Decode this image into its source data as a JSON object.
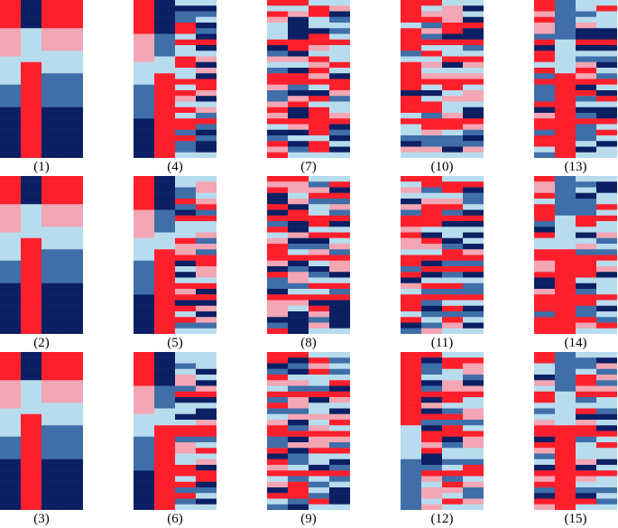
{
  "figure": {
    "panels": [
      {
        "label": "(1)",
        "cols": [
          "smooth-gradient",
          "smooth-gradient",
          "smooth-gradient",
          "smooth-gradient"
        ]
      },
      {
        "label": "(2)",
        "cols": [
          "smooth-gradient",
          "smooth-gradient",
          "smooth-gradient",
          "smooth-gradient"
        ]
      },
      {
        "label": "(3)",
        "cols": [
          "smooth-gradient",
          "smooth-gradient",
          "smooth-gradient",
          "smooth-gradient"
        ]
      },
      {
        "label": "(4)",
        "cols": [
          "smooth-gradient",
          "smooth-gradient",
          "banded-noise",
          "banded-noise"
        ]
      },
      {
        "label": "(5)",
        "cols": [
          "smooth-gradient",
          "smooth-gradient",
          "banded-noise",
          "banded-noise"
        ]
      },
      {
        "label": "(6)",
        "cols": [
          "smooth-gradient",
          "smooth-gradient",
          "banded-noise",
          "banded-noise"
        ]
      },
      {
        "label": "(7)",
        "cols": [
          "banded-noise",
          "banded-noise",
          "banded-noise",
          "banded-noise"
        ]
      },
      {
        "label": "(8)",
        "cols": [
          "banded-noise",
          "banded-noise",
          "banded-noise",
          "banded-noise"
        ]
      },
      {
        "label": "(9)",
        "cols": [
          "banded-noise",
          "banded-noise",
          "banded-noise",
          "banded-noise"
        ]
      },
      {
        "label": "(10)",
        "cols": [
          "banded-noise",
          "banded-noise",
          "banded-noise",
          "banded-noise"
        ]
      },
      {
        "label": "(11)",
        "cols": [
          "banded-noise",
          "banded-noise",
          "banded-noise",
          "banded-noise"
        ]
      },
      {
        "label": "(12)",
        "cols": [
          "smooth-gradient",
          "banded-noise",
          "banded-noise",
          "banded-noise"
        ]
      },
      {
        "label": "(13)",
        "cols": [
          "banded-noise",
          "smooth-gradient",
          "banded-noise",
          "banded-noise"
        ]
      },
      {
        "label": "(14)",
        "cols": [
          "banded-noise",
          "smooth-gradient",
          "banded-noise",
          "banded-noise"
        ]
      },
      {
        "label": "(15)",
        "cols": [
          "banded-noise",
          "smooth-gradient",
          "banded-noise",
          "banded-noise"
        ]
      }
    ],
    "colors": {
      "navy": "#0b1f63",
      "steel": "#3f6ea8",
      "light": "#b7dcee",
      "pink": "#f3a6b4",
      "red": "#ff1f2c"
    }
  }
}
